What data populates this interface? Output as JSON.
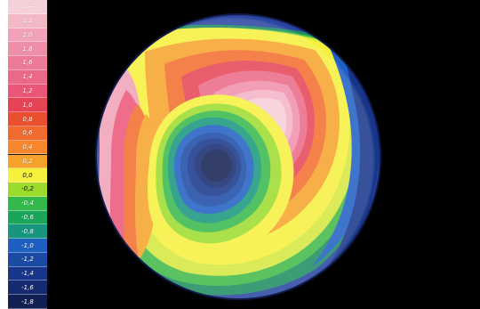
{
  "legend": {
    "items": [
      {
        "label": "2,4",
        "color": "#f6d0d8"
      },
      {
        "label": "2,2",
        "color": "#f3b8c6"
      },
      {
        "label": "2,0",
        "color": "#f1a2b8"
      },
      {
        "label": "1,8",
        "color": "#ef8ea9"
      },
      {
        "label": "1,6",
        "color": "#ee7a99"
      },
      {
        "label": "1,4",
        "color": "#ec6888"
      },
      {
        "label": "1,2",
        "color": "#ea5678"
      },
      {
        "label": "1,0",
        "color": "#e64455"
      },
      {
        "label": "0,8",
        "color": "#ea4f2f"
      },
      {
        "label": "0,6",
        "color": "#f06b2d"
      },
      {
        "label": "0,4",
        "color": "#f8862b"
      },
      {
        "label": "0,2",
        "color": "#f6a12a"
      },
      {
        "label": "0,0",
        "color": "#f5f03c"
      },
      {
        "label": "-0,2",
        "color": "#9cdb2c"
      },
      {
        "label": "-0,4",
        "color": "#34b84b"
      },
      {
        "label": "-0,6",
        "color": "#19a55a"
      },
      {
        "label": "-0,8",
        "color": "#17967d"
      },
      {
        "label": "-1,0",
        "color": "#1f5fc2"
      },
      {
        "label": "-1,2",
        "color": "#1b4aa5"
      },
      {
        "label": "-1,4",
        "color": "#17368a"
      },
      {
        "label": "-1,6",
        "color": "#152b70"
      },
      {
        "label": "-1,8",
        "color": "#121f53"
      }
    ]
  },
  "map": {
    "background": "#000000"
  }
}
